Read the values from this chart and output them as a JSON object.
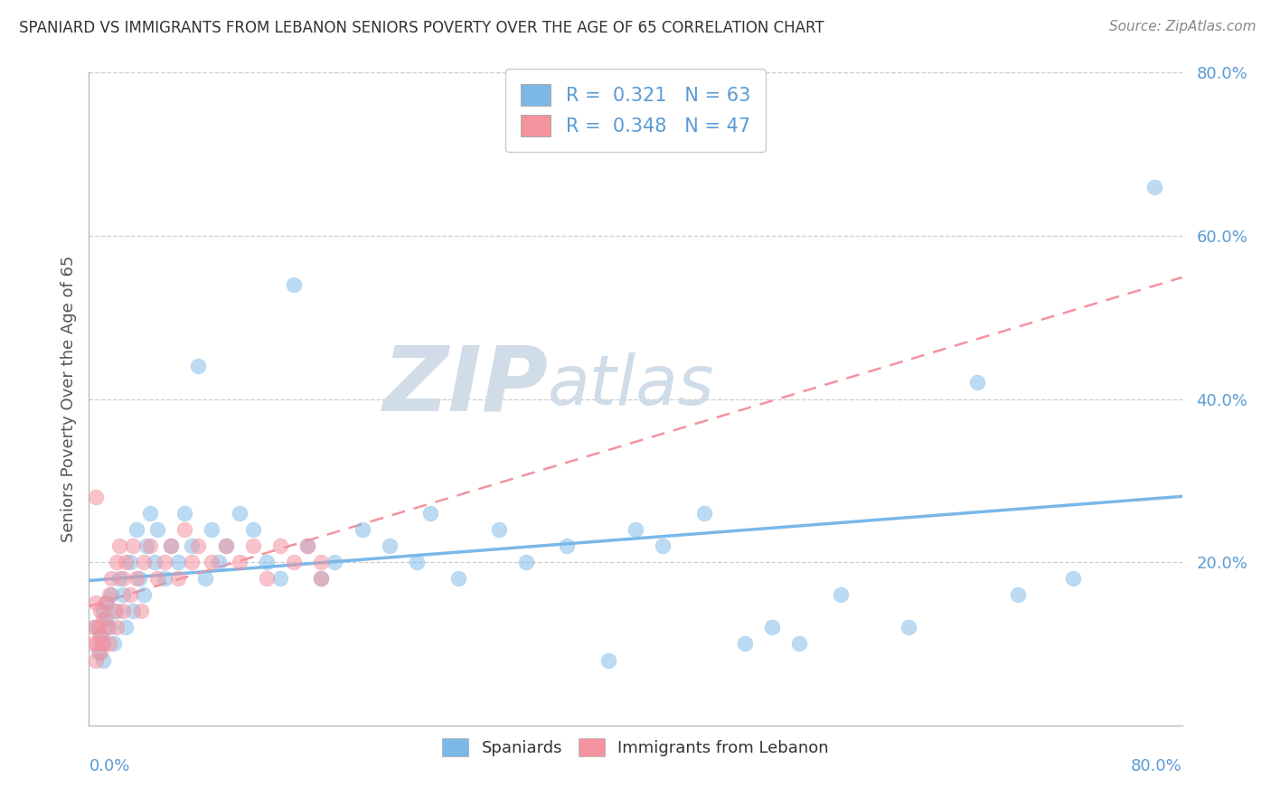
{
  "title": "SPANIARD VS IMMIGRANTS FROM LEBANON SENIORS POVERTY OVER THE AGE OF 65 CORRELATION CHART",
  "source": "Source: ZipAtlas.com",
  "ylabel": "Seniors Poverty Over the Age of 65",
  "ytick_vals": [
    0.2,
    0.4,
    0.6,
    0.8
  ],
  "xlim": [
    0.0,
    0.8
  ],
  "ylim": [
    0.0,
    0.8
  ],
  "spaniards_color": "#7ab8e8",
  "lebanon_color": "#f4929f",
  "spaniards_R": 0.321,
  "spaniards_N": 63,
  "lebanon_R": 0.348,
  "lebanon_N": 47,
  "legend1_r": "0.321",
  "legend1_n": "63",
  "legend2_r": "0.348",
  "legend2_n": "47",
  "title_color": "#333333",
  "source_color": "#888888",
  "axis_color": "#5b9bd5",
  "ylabel_color": "#555555",
  "grid_color": "#cccccc",
  "watermark_color": "#d0dce8",
  "spaniards_x": [
    0.005,
    0.007,
    0.008,
    0.009,
    0.01,
    0.01,
    0.012,
    0.013,
    0.015,
    0.016,
    0.018,
    0.02,
    0.022,
    0.025,
    0.027,
    0.03,
    0.032,
    0.035,
    0.037,
    0.04,
    0.042,
    0.045,
    0.048,
    0.05,
    0.055,
    0.06,
    0.065,
    0.07,
    0.075,
    0.08,
    0.085,
    0.09,
    0.095,
    0.1,
    0.11,
    0.12,
    0.13,
    0.14,
    0.15,
    0.16,
    0.17,
    0.18,
    0.2,
    0.22,
    0.24,
    0.25,
    0.27,
    0.3,
    0.32,
    0.35,
    0.38,
    0.4,
    0.42,
    0.45,
    0.48,
    0.5,
    0.52,
    0.55,
    0.6,
    0.65,
    0.68,
    0.72,
    0.78
  ],
  "spaniards_y": [
    0.12,
    0.09,
    0.11,
    0.1,
    0.14,
    0.08,
    0.13,
    0.15,
    0.12,
    0.16,
    0.1,
    0.14,
    0.18,
    0.16,
    0.12,
    0.2,
    0.14,
    0.24,
    0.18,
    0.16,
    0.22,
    0.26,
    0.2,
    0.24,
    0.18,
    0.22,
    0.2,
    0.26,
    0.22,
    0.44,
    0.18,
    0.24,
    0.2,
    0.22,
    0.26,
    0.24,
    0.2,
    0.18,
    0.54,
    0.22,
    0.18,
    0.2,
    0.24,
    0.22,
    0.2,
    0.26,
    0.18,
    0.24,
    0.2,
    0.22,
    0.08,
    0.24,
    0.22,
    0.26,
    0.1,
    0.12,
    0.1,
    0.16,
    0.12,
    0.42,
    0.16,
    0.18,
    0.66
  ],
  "lebanon_x": [
    0.003,
    0.004,
    0.005,
    0.005,
    0.006,
    0.007,
    0.008,
    0.008,
    0.009,
    0.01,
    0.01,
    0.012,
    0.013,
    0.015,
    0.015,
    0.016,
    0.018,
    0.02,
    0.02,
    0.022,
    0.025,
    0.025,
    0.027,
    0.03,
    0.032,
    0.035,
    0.038,
    0.04,
    0.045,
    0.05,
    0.055,
    0.06,
    0.065,
    0.07,
    0.075,
    0.08,
    0.09,
    0.1,
    0.11,
    0.12,
    0.13,
    0.14,
    0.15,
    0.16,
    0.17,
    0.17,
    0.005
  ],
  "lebanon_y": [
    0.1,
    0.12,
    0.08,
    0.15,
    0.1,
    0.12,
    0.09,
    0.14,
    0.11,
    0.1,
    0.13,
    0.15,
    0.12,
    0.16,
    0.1,
    0.18,
    0.14,
    0.2,
    0.12,
    0.22,
    0.18,
    0.14,
    0.2,
    0.16,
    0.22,
    0.18,
    0.14,
    0.2,
    0.22,
    0.18,
    0.2,
    0.22,
    0.18,
    0.24,
    0.2,
    0.22,
    0.2,
    0.22,
    0.2,
    0.22,
    0.18,
    0.22,
    0.2,
    0.22,
    0.2,
    0.18,
    0.28
  ]
}
